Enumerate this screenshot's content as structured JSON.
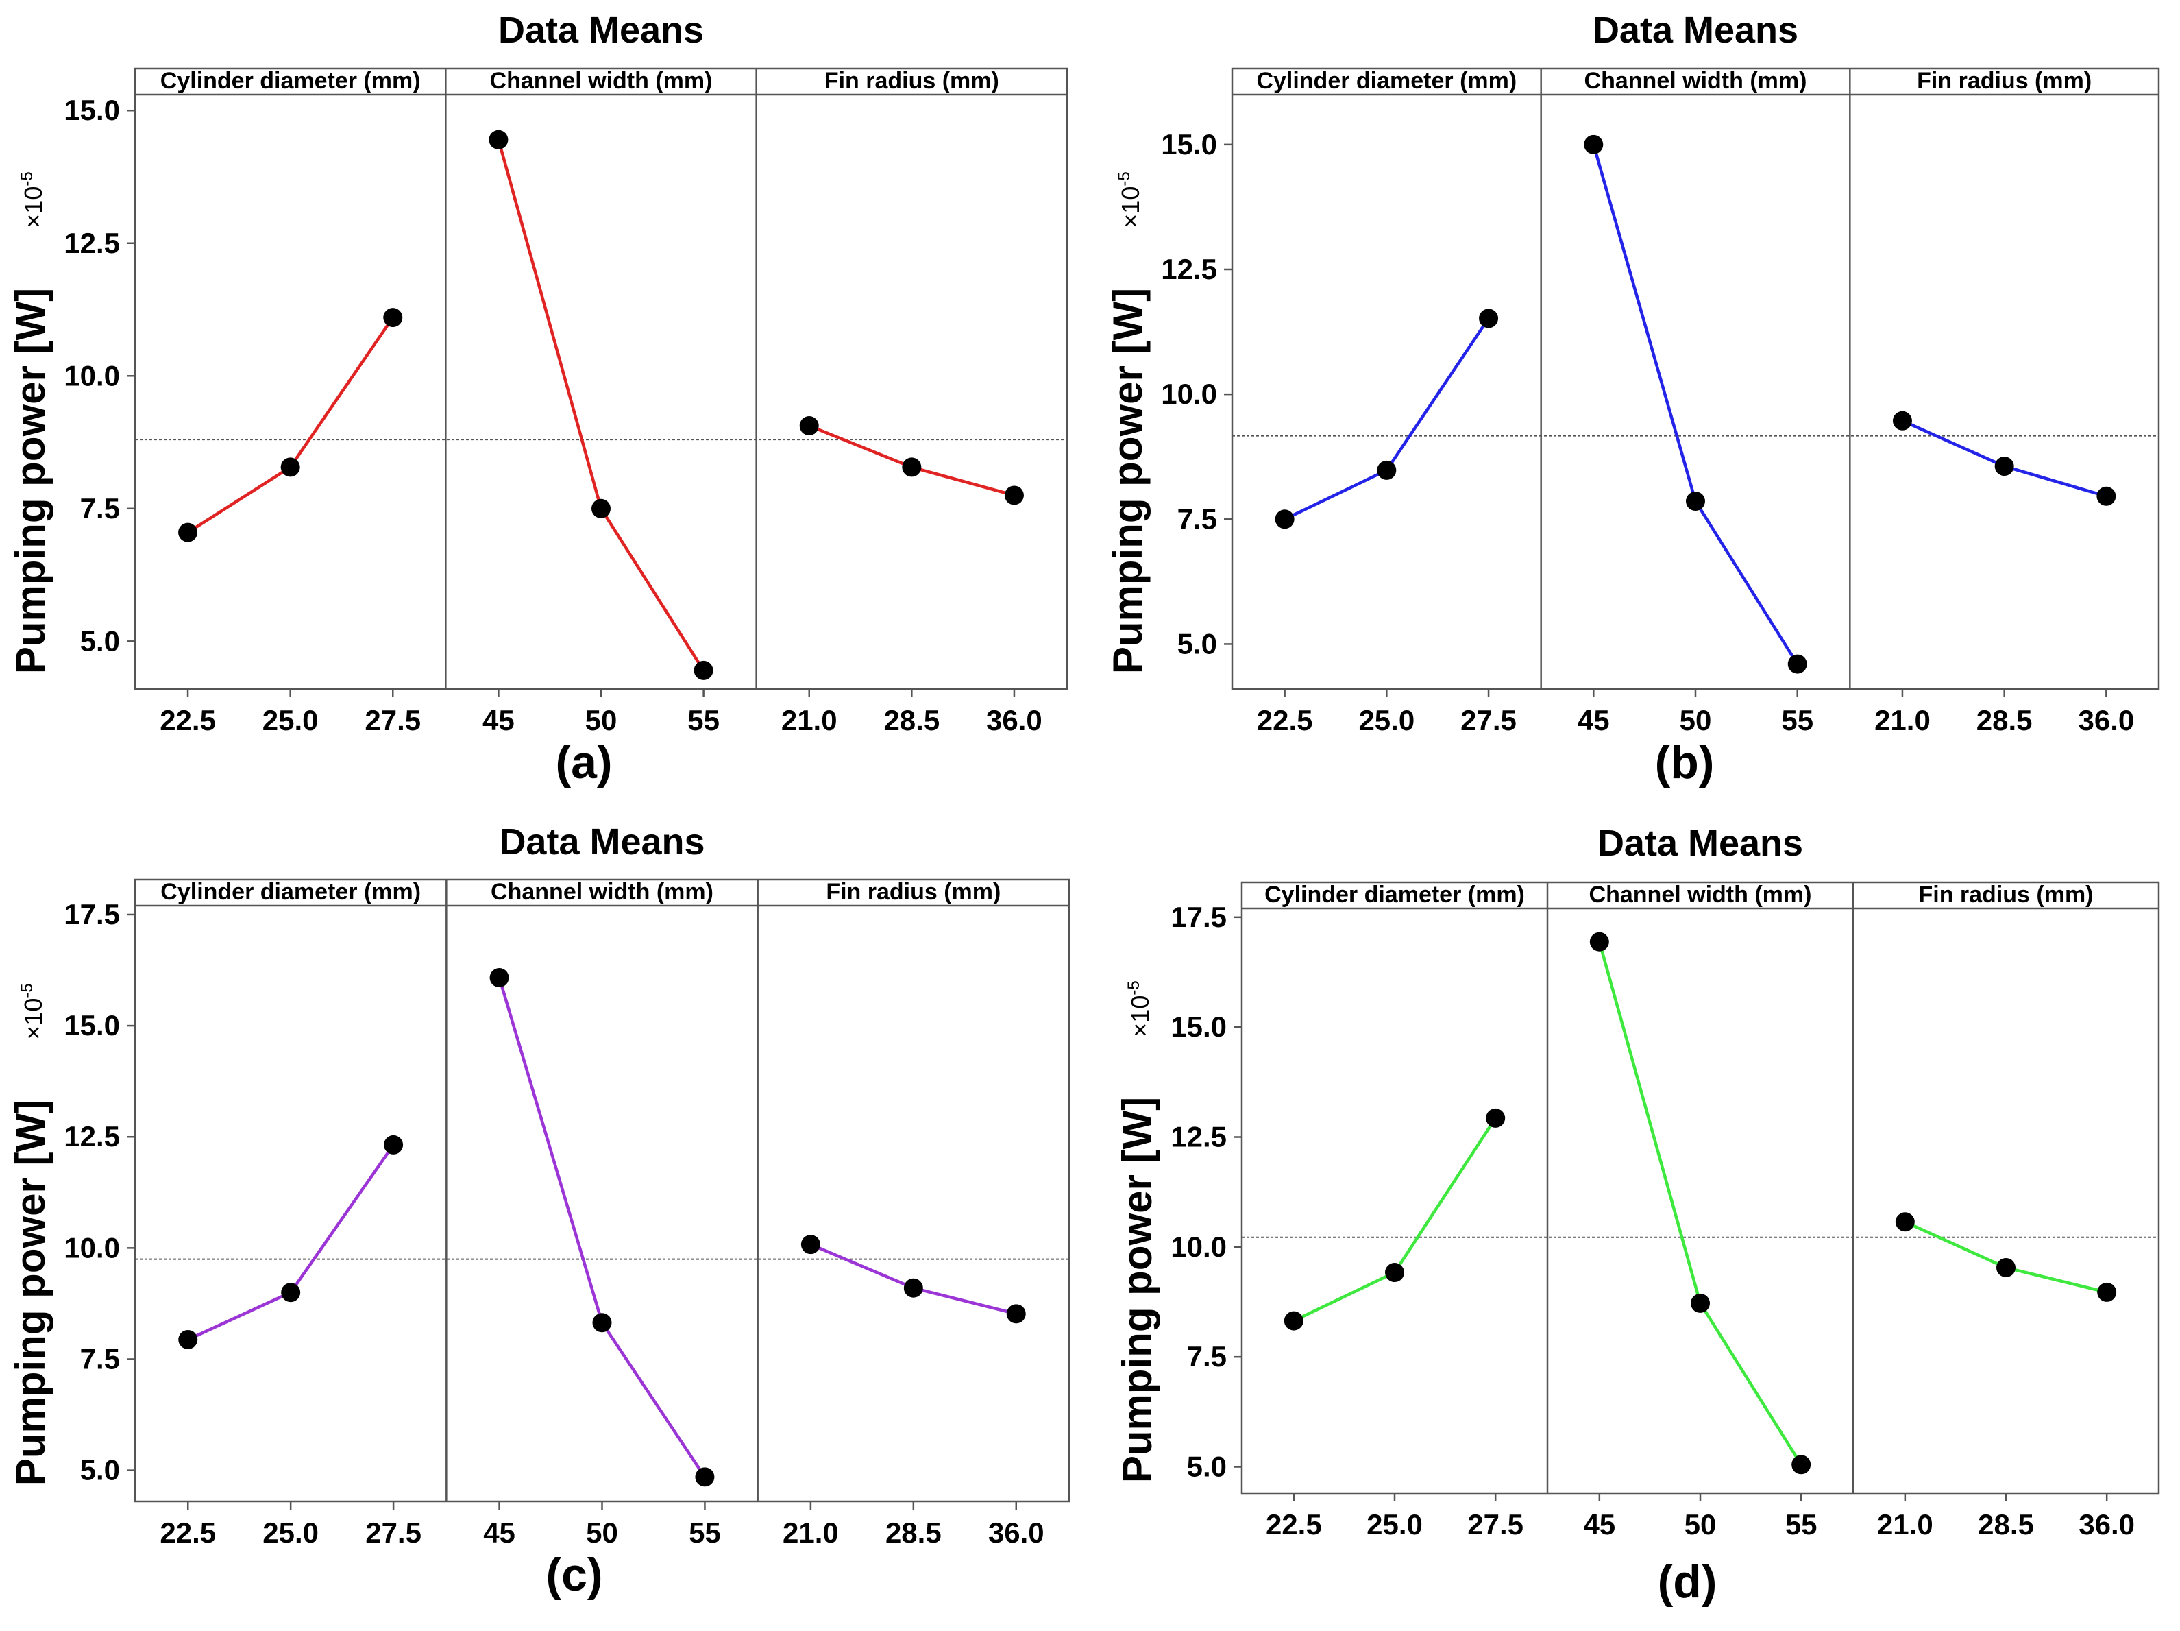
{
  "chart_data": [
    {
      "type": "line",
      "title": "Data Means",
      "caption": "(a)",
      "ylabel": "Pumping power [W]",
      "yscale_label": "×10",
      "yscale_exponent": "-5",
      "ylim": [
        4.1,
        15.3
      ],
      "yticks": [
        5.0,
        7.5,
        10.0,
        12.5,
        15.0
      ],
      "ytick_labels": [
        "5.0",
        "7.5",
        "10.0",
        "12.5",
        "15.0"
      ],
      "mean_line": 8.8,
      "color": "#e02424",
      "panels": [
        {
          "label": "Cylinder diameter (mm)",
          "x_labels": [
            "22.5",
            "25.0",
            "27.5"
          ],
          "values": [
            7.05,
            8.28,
            11.1
          ]
        },
        {
          "label": "Channel width (mm)",
          "x_labels": [
            "45",
            "50",
            "55"
          ],
          "values": [
            14.45,
            7.5,
            4.45
          ]
        },
        {
          "label": "Fin radius (mm)",
          "x_labels": [
            "21.0",
            "28.5",
            "36.0"
          ],
          "values": [
            9.06,
            8.28,
            7.75
          ]
        }
      ]
    },
    {
      "type": "line",
      "title": "Data Means",
      "caption": "(b)",
      "ylabel": "Pumping power [W]",
      "yscale_label": "×10",
      "yscale_exponent": "-5",
      "ylim": [
        4.1,
        16.0
      ],
      "yticks": [
        5.0,
        7.5,
        10.0,
        12.5,
        15.0
      ],
      "ytick_labels": [
        "5.0",
        "7.5",
        "10.0",
        "12.5",
        "15.0"
      ],
      "mean_line": 9.17,
      "color": "#2424e8",
      "panels": [
        {
          "label": "Cylinder diameter (mm)",
          "x_labels": [
            "22.5",
            "25.0",
            "27.5"
          ],
          "values": [
            7.5,
            8.48,
            11.52
          ]
        },
        {
          "label": "Channel width (mm)",
          "x_labels": [
            "45",
            "50",
            "55"
          ],
          "values": [
            15.0,
            7.86,
            4.6
          ]
        },
        {
          "label": "Fin radius (mm)",
          "x_labels": [
            "21.0",
            "28.5",
            "36.0"
          ],
          "values": [
            9.47,
            8.56,
            7.96
          ]
        }
      ]
    },
    {
      "type": "line",
      "title": "Data Means",
      "caption": "(c)",
      "ylabel": "Pumping power [W]",
      "yscale_label": "×10",
      "yscale_exponent": "-5",
      "ylim": [
        4.3,
        17.7
      ],
      "yticks": [
        5.0,
        7.5,
        10.0,
        12.5,
        15.0,
        17.5
      ],
      "ytick_labels": [
        "5.0",
        "7.5",
        "10.0",
        "12.5",
        "15.0",
        "17.5"
      ],
      "mean_line": 9.75,
      "color": "#9b35d6",
      "panels": [
        {
          "label": "Cylinder diameter (mm)",
          "x_labels": [
            "22.5",
            "25.0",
            "27.5"
          ],
          "values": [
            7.94,
            9.0,
            12.32
          ]
        },
        {
          "label": "Channel width (mm)",
          "x_labels": [
            "45",
            "50",
            "55"
          ],
          "values": [
            16.08,
            8.32,
            4.85
          ]
        },
        {
          "label": "Fin radius (mm)",
          "x_labels": [
            "21.0",
            "28.5",
            "36.0"
          ],
          "values": [
            10.08,
            9.1,
            8.52
          ]
        }
      ]
    },
    {
      "type": "line",
      "title": "Data Means",
      "caption": "(d)",
      "ylabel": "Pumping power [W]",
      "yscale_label": "×10",
      "yscale_exponent": "-5",
      "ylim": [
        4.4,
        17.7
      ],
      "yticks": [
        5.0,
        7.5,
        10.0,
        12.5,
        15.0,
        17.5
      ],
      "ytick_labels": [
        "5.0",
        "7.5",
        "10.0",
        "12.5",
        "15.0",
        "17.5"
      ],
      "mean_line": 10.22,
      "color": "#3ee83e",
      "panels": [
        {
          "label": "Cylinder diameter (mm)",
          "x_labels": [
            "22.5",
            "25.0",
            "27.5"
          ],
          "values": [
            8.32,
            9.42,
            12.93
          ]
        },
        {
          "label": "Channel width (mm)",
          "x_labels": [
            "45",
            "50",
            "55"
          ],
          "values": [
            16.94,
            8.72,
            5.05
          ]
        },
        {
          "label": "Fin radius (mm)",
          "x_labels": [
            "21.0",
            "28.5",
            "36.0"
          ],
          "values": [
            10.57,
            9.53,
            8.97
          ]
        }
      ]
    }
  ]
}
